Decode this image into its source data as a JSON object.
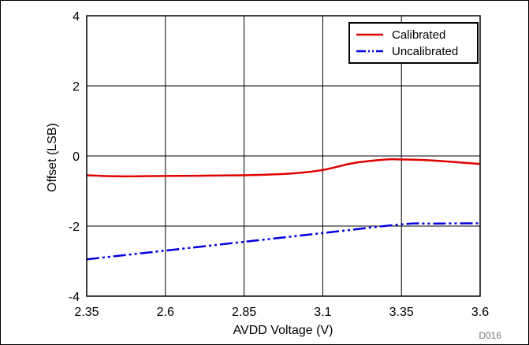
{
  "chart_data": {
    "type": "line",
    "title": "",
    "xlabel": "AVDD Voltage (V)",
    "ylabel": "Offset (LSB)",
    "xlim": [
      2.35,
      3.6
    ],
    "ylim": [
      -4,
      4
    ],
    "x_ticks": [
      "2.35",
      "2.6",
      "2.85",
      "3.1",
      "3.35",
      "3.6"
    ],
    "y_ticks": [
      "-4",
      "-2",
      "0",
      "2",
      "4"
    ],
    "grid": true,
    "legend_position": "top-right",
    "series": [
      {
        "name": "Calibrated",
        "color": "#e00000",
        "style": "solid",
        "x": [
          2.35,
          2.45,
          2.6,
          2.85,
          3.0,
          3.1,
          3.2,
          3.3,
          3.35,
          3.45,
          3.6
        ],
        "y": [
          -0.55,
          -0.58,
          -0.57,
          -0.55,
          -0.5,
          -0.4,
          -0.2,
          -0.1,
          -0.1,
          -0.13,
          -0.23
        ]
      },
      {
        "name": "Uncalibrated",
        "color": "#0000e0",
        "style": "dash-dot-dot",
        "x": [
          2.35,
          2.6,
          2.85,
          3.1,
          3.35,
          3.45,
          3.6
        ],
        "y": [
          -2.95,
          -2.7,
          -2.45,
          -2.2,
          -1.95,
          -1.93,
          -1.92
        ]
      }
    ],
    "footnote": "D016"
  }
}
